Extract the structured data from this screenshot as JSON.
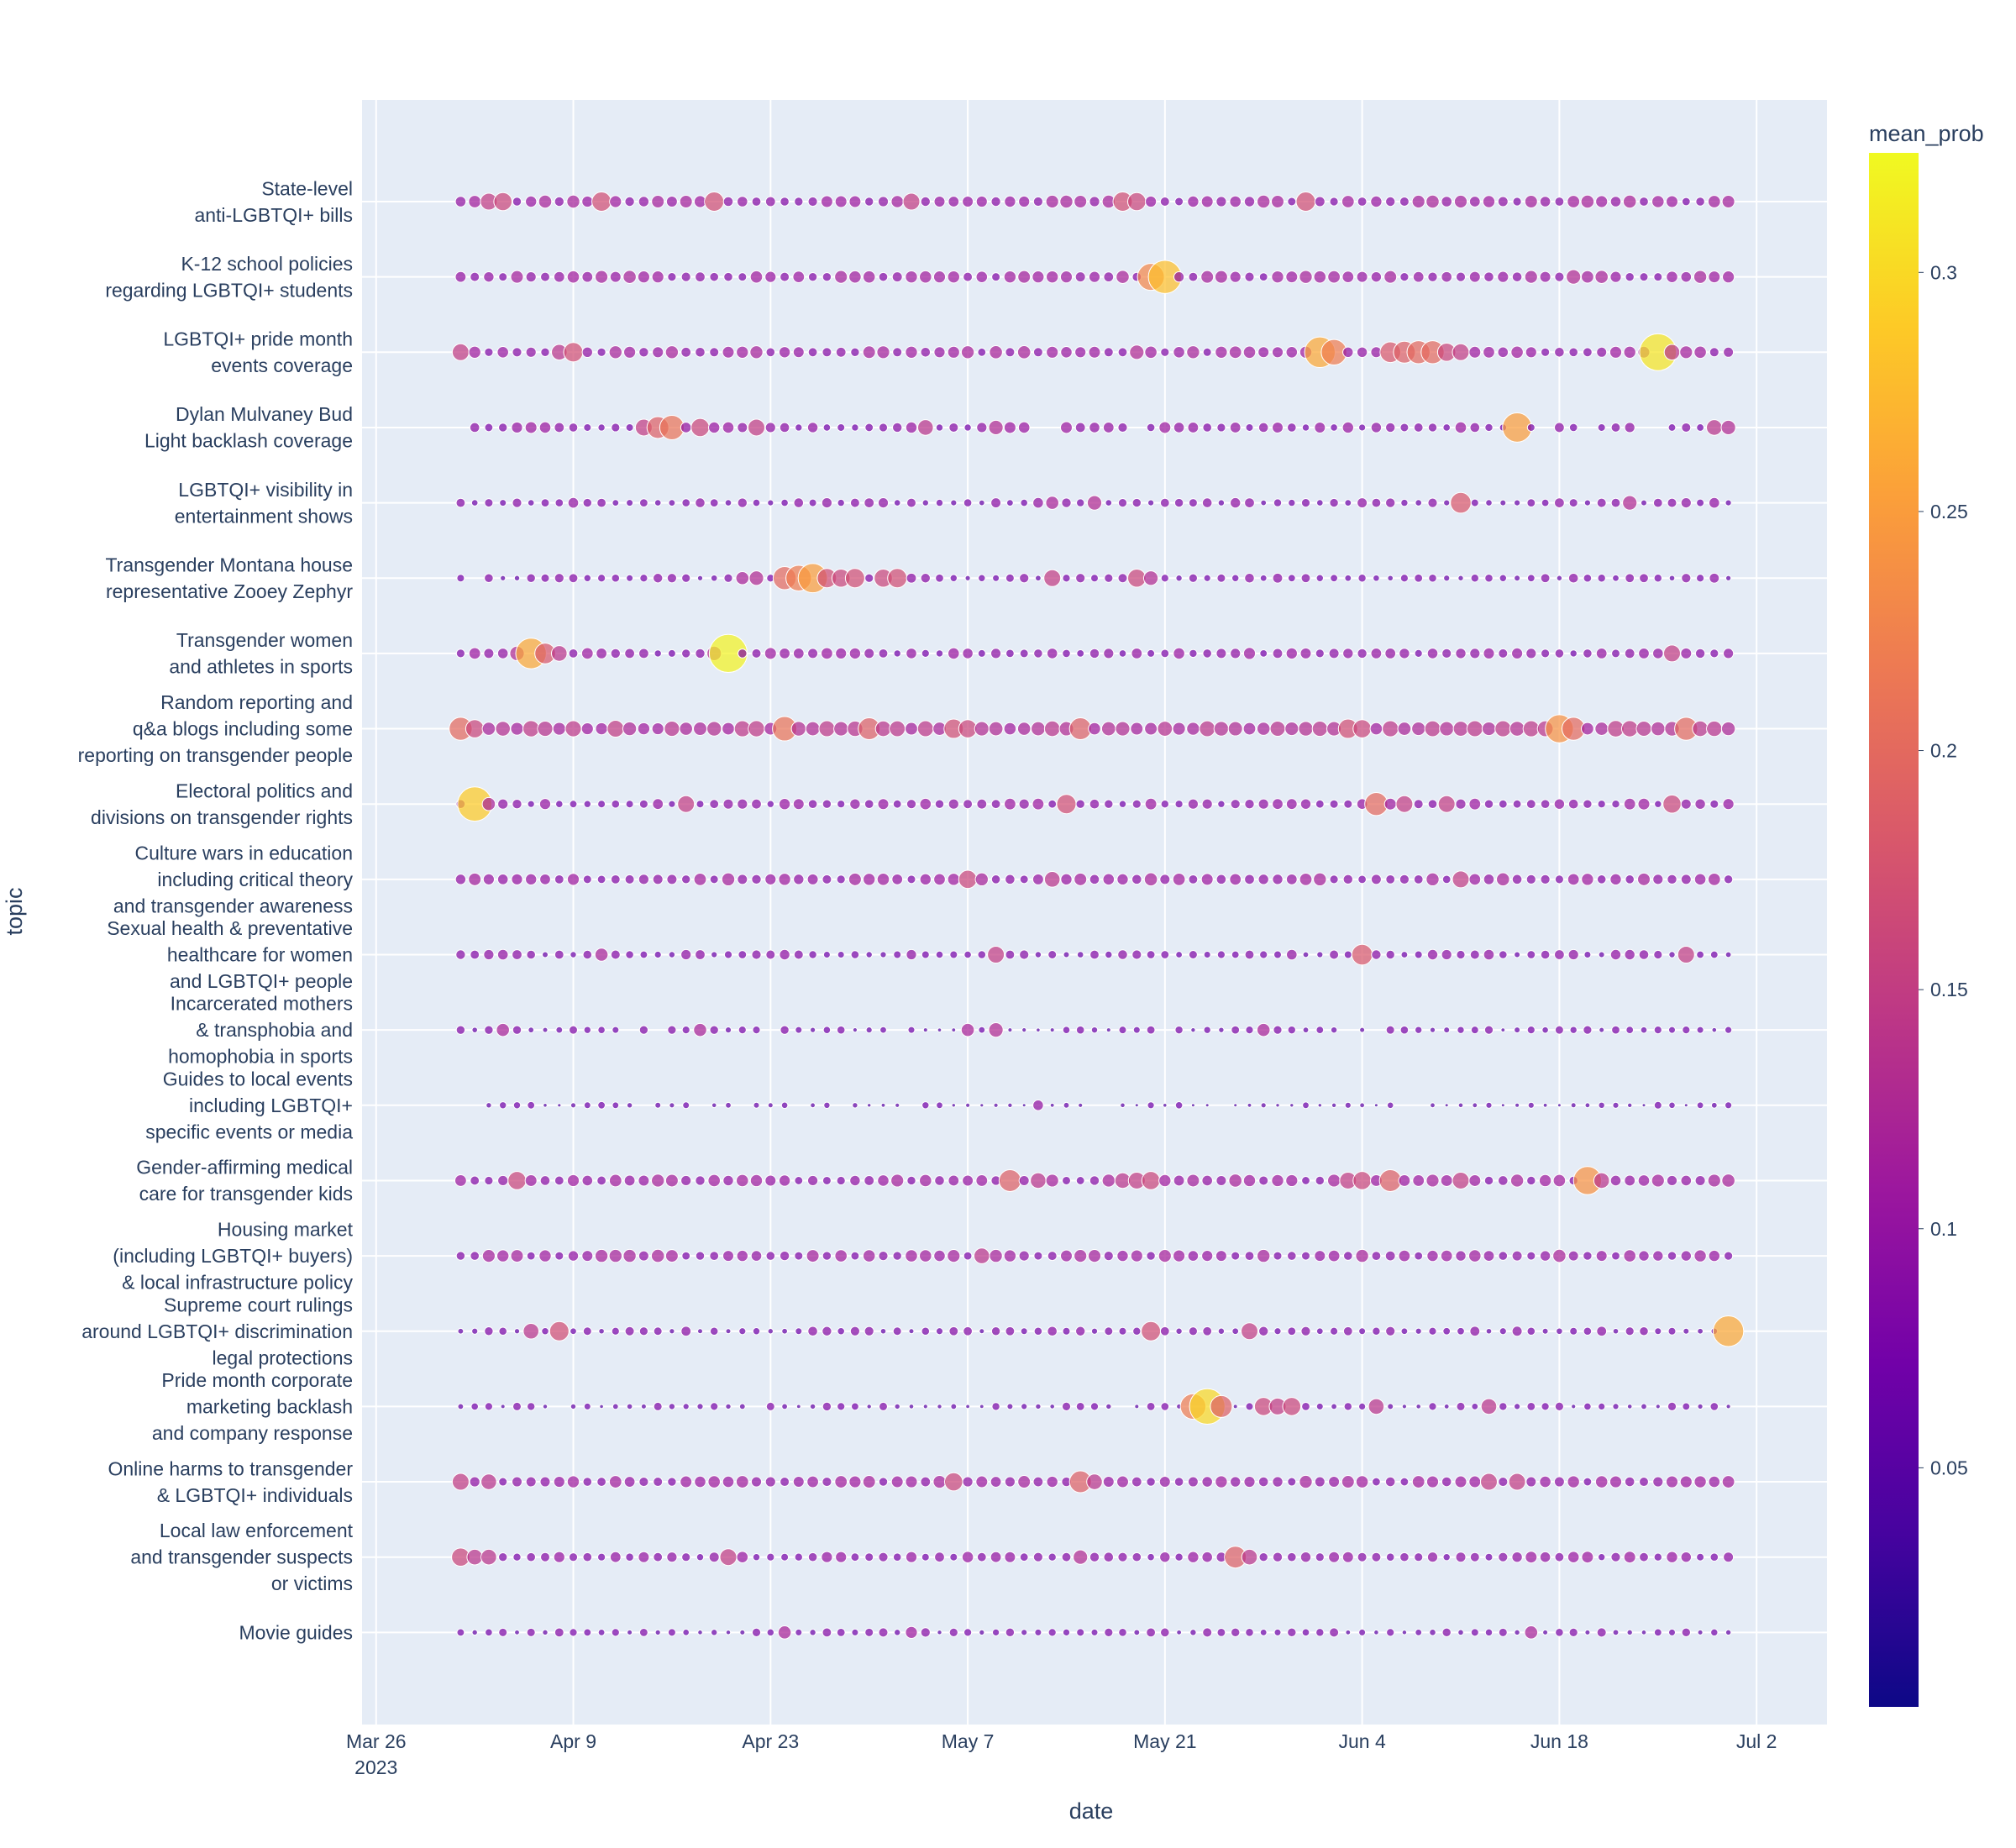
{
  "chart_data": {
    "type": "scatter",
    "xlabel": "date",
    "ylabel": "topic",
    "x_ticks": [
      {
        "date": "2023-03-26",
        "label": "Mar 26",
        "sub": "2023"
      },
      {
        "date": "2023-04-09",
        "label": "Apr 9",
        "sub": ""
      },
      {
        "date": "2023-04-23",
        "label": "Apr 23",
        "sub": ""
      },
      {
        "date": "2023-05-07",
        "label": "May 7",
        "sub": ""
      },
      {
        "date": "2023-05-21",
        "label": "May 21",
        "sub": ""
      },
      {
        "date": "2023-06-04",
        "label": "Jun 4",
        "sub": ""
      },
      {
        "date": "2023-06-18",
        "label": "Jun 18",
        "sub": ""
      },
      {
        "date": "2023-07-02",
        "label": "Jul 2",
        "sub": ""
      }
    ],
    "xlim": [
      "2023-03-25",
      "2023-07-07"
    ],
    "date_range": [
      "2023-04-01",
      "2023-06-30"
    ],
    "colorbar": {
      "title": "mean_prob",
      "range": [
        0,
        0.325
      ],
      "ticks": [
        0.05,
        0.1,
        0.15,
        0.2,
        0.25,
        0.3
      ],
      "tick_labels": [
        "0.05",
        "0.1",
        "0.15",
        "0.2",
        "0.25",
        "0.3"
      ],
      "colorscale": "plasma"
    },
    "topics": [
      {
        "label": "State-level\nanti-LGBTQI+ bills",
        "base": 0.1,
        "highlights": [
          [
            "2023-04-03",
            0.15
          ],
          [
            "2023-04-04",
            0.16
          ],
          [
            "2023-04-11",
            0.17
          ],
          [
            "2023-04-19",
            0.17
          ],
          [
            "2023-05-03",
            0.15
          ],
          [
            "2023-05-18",
            0.17
          ],
          [
            "2023-05-19",
            0.16
          ],
          [
            "2023-05-31",
            0.17
          ],
          [
            "2023-06-09",
            0.12
          ],
          [
            "2023-06-23",
            0.12
          ]
        ],
        "gaps": []
      },
      {
        "label": "K-12 school policies\nregarding LGBTQI+ students",
        "base": 0.1,
        "highlights": [
          [
            "2023-05-20",
            0.23
          ],
          [
            "2023-05-21",
            0.28
          ],
          [
            "2023-06-19",
            0.13
          ],
          [
            "2023-06-21",
            0.12
          ]
        ],
        "gaps": []
      },
      {
        "label": "LGBTQI+ pride month\nevents coverage",
        "base": 0.1,
        "highlights": [
          [
            "2023-04-01",
            0.15
          ],
          [
            "2023-04-08",
            0.14
          ],
          [
            "2023-04-09",
            0.17
          ],
          [
            "2023-05-11",
            0.12
          ],
          [
            "2023-05-19",
            0.13
          ],
          [
            "2023-06-01",
            0.26
          ],
          [
            "2023-06-02",
            0.22
          ],
          [
            "2023-06-06",
            0.18
          ],
          [
            "2023-06-07",
            0.19
          ],
          [
            "2023-06-08",
            0.2
          ],
          [
            "2023-06-09",
            0.2
          ],
          [
            "2023-06-10",
            0.16
          ],
          [
            "2023-06-11",
            0.15
          ],
          [
            "2023-06-25",
            0.31
          ],
          [
            "2023-06-26",
            0.14
          ]
        ],
        "gaps": []
      },
      {
        "label": "Dylan Mulvaney Bud\nLight backlash coverage",
        "base": 0.09,
        "highlights": [
          [
            "2023-04-14",
            0.15
          ],
          [
            "2023-04-15",
            0.19
          ],
          [
            "2023-04-16",
            0.21
          ],
          [
            "2023-04-18",
            0.16
          ],
          [
            "2023-04-22",
            0.15
          ],
          [
            "2023-05-04",
            0.14
          ],
          [
            "2023-05-09",
            0.13
          ],
          [
            "2023-06-15",
            0.25
          ],
          [
            "2023-06-29",
            0.14
          ],
          [
            "2023-06-30",
            0.13
          ]
        ],
        "gaps": [
          "2023-04-01",
          "2023-05-12",
          "2023-05-13",
          "2023-05-19",
          "2023-06-17",
          "2023-06-20",
          "2023-06-24",
          "2023-06-25"
        ]
      },
      {
        "label": "LGBTQI+ visibility in\nentertainment shows",
        "base": 0.08,
        "highlights": [
          [
            "2023-05-13",
            0.12
          ],
          [
            "2023-05-16",
            0.13
          ],
          [
            "2023-06-11",
            0.18
          ],
          [
            "2023-06-23",
            0.13
          ]
        ],
        "gaps": []
      },
      {
        "label": "Transgender Montana house\nrepresentative Zooey Zephyr",
        "base": 0.075,
        "highlights": [
          [
            "2023-04-21",
            0.12
          ],
          [
            "2023-04-22",
            0.13
          ],
          [
            "2023-04-24",
            0.2
          ],
          [
            "2023-04-25",
            0.22
          ],
          [
            "2023-04-26",
            0.25
          ],
          [
            "2023-04-27",
            0.17
          ],
          [
            "2023-04-28",
            0.16
          ],
          [
            "2023-04-29",
            0.17
          ],
          [
            "2023-05-01",
            0.16
          ],
          [
            "2023-05-02",
            0.17
          ],
          [
            "2023-05-13",
            0.15
          ],
          [
            "2023-05-19",
            0.16
          ],
          [
            "2023-05-20",
            0.13
          ]
        ],
        "gaps": [
          "2023-04-02"
        ]
      },
      {
        "label": "Transgender women\nand athletes in sports",
        "base": 0.09,
        "highlights": [
          [
            "2023-04-05",
            0.13
          ],
          [
            "2023-04-06",
            0.26
          ],
          [
            "2023-04-07",
            0.18
          ],
          [
            "2023-04-08",
            0.14
          ],
          [
            "2023-04-19",
            0.13
          ],
          [
            "2023-04-20",
            0.32
          ],
          [
            "2023-06-26",
            0.15
          ]
        ],
        "gaps": []
      },
      {
        "label": "Random reporting and\nq&a blogs including some\nreporting on transgender people",
        "base": 0.13,
        "highlights": [
          [
            "2023-04-01",
            0.2
          ],
          [
            "2023-04-02",
            0.16
          ],
          [
            "2023-04-24",
            0.21
          ],
          [
            "2023-04-30",
            0.19
          ],
          [
            "2023-05-06",
            0.17
          ],
          [
            "2023-05-07",
            0.16
          ],
          [
            "2023-05-15",
            0.19
          ],
          [
            "2023-06-03",
            0.17
          ],
          [
            "2023-06-04",
            0.16
          ],
          [
            "2023-06-18",
            0.24
          ],
          [
            "2023-06-19",
            0.2
          ],
          [
            "2023-06-27",
            0.2
          ]
        ],
        "gaps": []
      },
      {
        "label": "Electoral politics and\ndivisions on transgender rights",
        "base": 0.09,
        "highlights": [
          [
            "2023-04-02",
            0.29
          ],
          [
            "2023-04-03",
            0.12
          ],
          [
            "2023-04-17",
            0.15
          ],
          [
            "2023-05-14",
            0.17
          ],
          [
            "2023-06-05",
            0.2
          ],
          [
            "2023-06-07",
            0.15
          ],
          [
            "2023-06-10",
            0.15
          ],
          [
            "2023-06-26",
            0.16
          ]
        ],
        "gaps": []
      },
      {
        "label": "Culture wars in education\nincluding critical theory\nand transgender awareness",
        "base": 0.1,
        "highlights": [
          [
            "2023-05-07",
            0.16
          ],
          [
            "2023-05-13",
            0.14
          ],
          [
            "2023-06-11",
            0.15
          ]
        ],
        "gaps": []
      },
      {
        "label": "Sexual health & preventative\nhealthcare for women\nand LGBTQI+ people",
        "base": 0.08,
        "highlights": [
          [
            "2023-04-11",
            0.12
          ],
          [
            "2023-05-09",
            0.15
          ],
          [
            "2023-06-04",
            0.18
          ],
          [
            "2023-06-27",
            0.15
          ]
        ],
        "gaps": []
      },
      {
        "label": "Incarcerated mothers\n& transphobia and\nhomophobia in sports",
        "base": 0.065,
        "highlights": [
          [
            "2023-04-04",
            0.12
          ],
          [
            "2023-04-18",
            0.12
          ],
          [
            "2023-05-07",
            0.12
          ],
          [
            "2023-05-09",
            0.13
          ],
          [
            "2023-05-28",
            0.12
          ]
        ],
        "gaps": [
          "2023-04-13",
          "2023-04-15",
          "2023-04-23",
          "2023-05-02",
          "2023-05-21",
          "2023-06-03",
          "2023-06-05"
        ]
      },
      {
        "label": "Guides to local events\nincluding LGBTQI+\nspecific events or media",
        "base": 0.055,
        "highlights": [
          [
            "2023-05-12",
            0.1
          ]
        ],
        "gaps": [
          "2023-04-01",
          "2023-04-02",
          "2023-04-14",
          "2023-04-18",
          "2023-04-21",
          "2023-04-25",
          "2023-04-28",
          "2023-05-03",
          "2023-05-16",
          "2023-05-17",
          "2023-05-25",
          "2023-06-07",
          "2023-06-08"
        ]
      },
      {
        "label": "Gender-affirming medical\ncare for transgender kids",
        "base": 0.1,
        "highlights": [
          [
            "2023-04-05",
            0.16
          ],
          [
            "2023-05-10",
            0.19
          ],
          [
            "2023-05-12",
            0.14
          ],
          [
            "2023-05-18",
            0.14
          ],
          [
            "2023-05-19",
            0.15
          ],
          [
            "2023-05-20",
            0.16
          ],
          [
            "2023-06-03",
            0.15
          ],
          [
            "2023-06-04",
            0.16
          ],
          [
            "2023-06-06",
            0.19
          ],
          [
            "2023-06-11",
            0.15
          ],
          [
            "2023-06-20",
            0.24
          ],
          [
            "2023-06-21",
            0.14
          ]
        ],
        "gaps": []
      },
      {
        "label": "Housing market\n(including LGBTQI+ buyers)\n& local infrastructure policy",
        "base": 0.1,
        "highlights": [
          [
            "2023-05-08",
            0.14
          ],
          [
            "2023-06-18",
            0.12
          ]
        ],
        "gaps": []
      },
      {
        "label": "Supreme court rulings\naround LGBTQI+ discrimination\nlegal protections",
        "base": 0.075,
        "highlights": [
          [
            "2023-04-06",
            0.14
          ],
          [
            "2023-04-08",
            0.17
          ],
          [
            "2023-05-20",
            0.17
          ],
          [
            "2023-05-27",
            0.15
          ],
          [
            "2023-06-30",
            0.26
          ]
        ],
        "gaps": []
      },
      {
        "label": "Pride month corporate\nmarketing backlash\nand company response",
        "base": 0.065,
        "highlights": [
          [
            "2023-05-23",
            0.22
          ],
          [
            "2023-05-24",
            0.3
          ],
          [
            "2023-05-25",
            0.19
          ],
          [
            "2023-05-28",
            0.16
          ],
          [
            "2023-05-29",
            0.15
          ],
          [
            "2023-05-30",
            0.16
          ],
          [
            "2023-06-05",
            0.14
          ],
          [
            "2023-06-13",
            0.14
          ]
        ],
        "gaps": [
          "2023-04-08",
          "2023-04-22",
          "2023-05-18"
        ]
      },
      {
        "label": "Online harms to transgender\n& LGBTQI+ individuals",
        "base": 0.1,
        "highlights": [
          [
            "2023-04-01",
            0.15
          ],
          [
            "2023-04-03",
            0.14
          ],
          [
            "2023-05-06",
            0.16
          ],
          [
            "2023-05-15",
            0.19
          ],
          [
            "2023-05-16",
            0.14
          ],
          [
            "2023-06-13",
            0.15
          ],
          [
            "2023-06-15",
            0.15
          ]
        ],
        "gaps": []
      },
      {
        "label": "Local law enforcement\nand transgender suspects\nor victims",
        "base": 0.09,
        "highlights": [
          [
            "2023-04-01",
            0.16
          ],
          [
            "2023-04-02",
            0.14
          ],
          [
            "2023-04-03",
            0.14
          ],
          [
            "2023-04-20",
            0.15
          ],
          [
            "2023-05-15",
            0.13
          ],
          [
            "2023-05-26",
            0.19
          ],
          [
            "2023-05-27",
            0.14
          ]
        ],
        "gaps": []
      },
      {
        "label": "Movie guides",
        "base": 0.07,
        "highlights": [
          [
            "2023-04-24",
            0.12
          ],
          [
            "2023-05-03",
            0.11
          ],
          [
            "2023-06-16",
            0.12
          ]
        ],
        "gaps": []
      }
    ]
  }
}
